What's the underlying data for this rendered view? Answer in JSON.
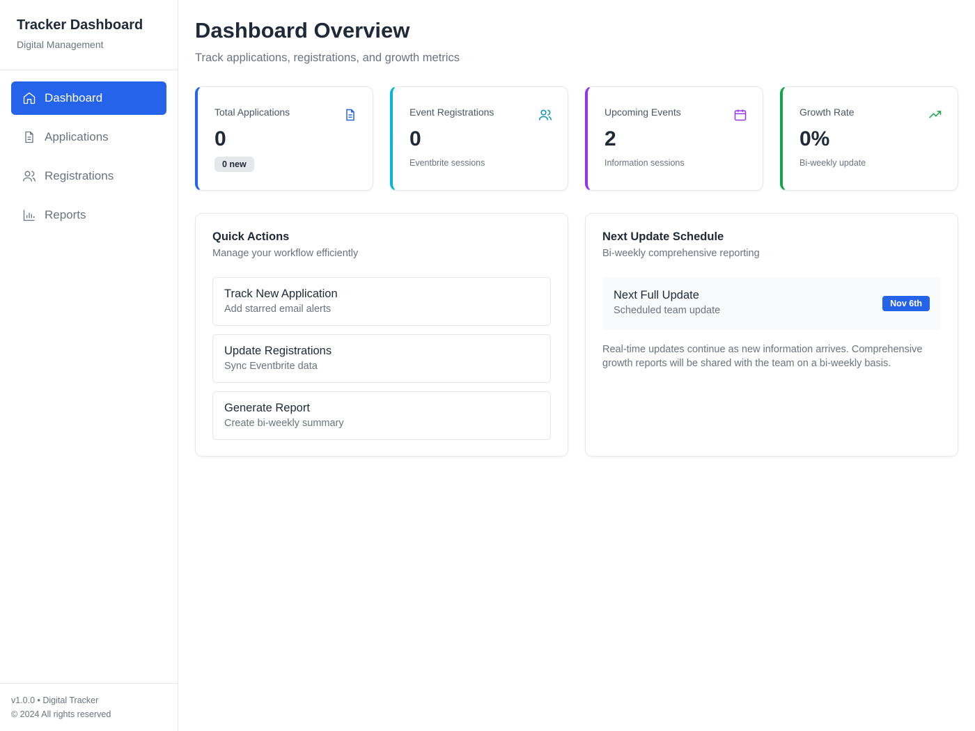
{
  "sidebar": {
    "title": "Tracker Dashboard",
    "subtitle": "Digital Management",
    "nav": [
      "Dashboard",
      "Applications",
      "Registrations",
      "Reports"
    ],
    "footer": [
      "v1.0.0 • Digital Tracker",
      "© 2024 All rights reserved"
    ]
  },
  "header": {
    "title": "Dashboard Overview",
    "subtitle": "Track applications, registrations, and growth metrics"
  },
  "stats": [
    {
      "label": "Total Applications",
      "value": "0",
      "badge": "0 new"
    },
    {
      "label": "Event Registrations",
      "value": "0",
      "note": "Eventbrite sessions"
    },
    {
      "label": "Upcoming Events",
      "value": "2",
      "note": "Information sessions"
    },
    {
      "label": "Growth Rate",
      "value": "0%",
      "note": "Bi-weekly update"
    }
  ],
  "quick_actions": {
    "title": "Quick Actions",
    "subtitle": "Manage your workflow efficiently",
    "items": [
      {
        "title": "Track New Application",
        "description": "Add starred email alerts"
      },
      {
        "title": "Update Registrations",
        "description": "Sync Eventbrite data"
      },
      {
        "title": "Generate Report",
        "description": "Create bi-weekly summary"
      }
    ]
  },
  "schedule": {
    "title": "Next Update Schedule",
    "subtitle": "Bi-weekly comprehensive reporting",
    "item": {
      "title": "Next Full Update",
      "description": "Scheduled team update",
      "badge": "Nov 6th"
    },
    "text": "Real-time updates continue as new information arrives. Comprehensive growth reports will be shared with the team on a bi-weekly basis."
  }
}
